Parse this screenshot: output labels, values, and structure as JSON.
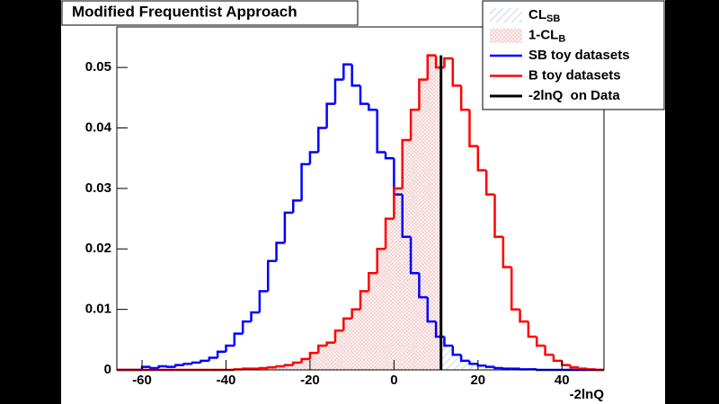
{
  "chart_data": {
    "type": "histogram",
    "title": "Modified Frequentist Approach",
    "xlabel": "-2lnQ",
    "xlim": [
      -66,
      50
    ],
    "ylim": [
      0,
      0.0567
    ],
    "xticks": [
      -60,
      -40,
      -20,
      0,
      20,
      40
    ],
    "yticks": [
      0,
      0.01,
      0.02,
      0.03,
      0.04,
      0.05
    ],
    "bins": [
      -66,
      -64,
      -62,
      -60,
      -58,
      -56,
      -54,
      -52,
      -50,
      -48,
      -46,
      -44,
      -42,
      -40,
      -38,
      -36,
      -34,
      -32,
      -30,
      -28,
      -26,
      -24,
      -22,
      -20,
      -18,
      -16,
      -14,
      -12,
      -10,
      -8,
      -6,
      -4,
      -2,
      0,
      2,
      4,
      6,
      8,
      10,
      12,
      14,
      16,
      18,
      20,
      22,
      24,
      26,
      28,
      30,
      32,
      34,
      36,
      38,
      40,
      42,
      44,
      46,
      48,
      50
    ],
    "series": [
      {
        "name": "SB toy datasets",
        "color": "#0000ff",
        "fill": "hatch",
        "fill_name": "CL",
        "fill_sub": "SB",
        "fill_side": "right",
        "values": [
          0,
          0,
          0,
          0.0005,
          0.0003,
          0.0006,
          0.0005,
          0.0008,
          0.001,
          0.0012,
          0.0015,
          0.002,
          0.003,
          0.004,
          0.006,
          0.008,
          0.0095,
          0.013,
          0.018,
          0.021,
          0.026,
          0.028,
          0.034,
          0.036,
          0.04,
          0.044,
          0.048,
          0.0505,
          0.047,
          0.044,
          0.043,
          0.036,
          0.035,
          0.029,
          0.022,
          0.016,
          0.012,
          0.008,
          0.0055,
          0.004,
          0.0025,
          0.0015,
          0.001,
          0.0007,
          0.0005,
          0.0003,
          0.0002,
          0.0002,
          0.0001,
          0.0001,
          0,
          0,
          0,
          0,
          0,
          0,
          0,
          0
        ]
      },
      {
        "name": "B toy datasets",
        "color": "#ff0000",
        "fill": "dots",
        "fill_name": "1-CL",
        "fill_sub": "B",
        "fill_side": "left",
        "values": [
          0,
          0,
          0,
          0,
          0,
          0,
          0,
          0,
          0,
          0,
          0,
          0,
          0,
          0,
          0.0001,
          0.0002,
          0.0002,
          0.0003,
          0.0004,
          0.0006,
          0.0008,
          0.0012,
          0.0018,
          0.0028,
          0.004,
          0.0045,
          0.0065,
          0.0085,
          0.01,
          0.013,
          0.016,
          0.02,
          0.025,
          0.03,
          0.038,
          0.043,
          0.048,
          0.052,
          0.05,
          0.0515,
          0.047,
          0.043,
          0.037,
          0.033,
          0.029,
          0.022,
          0.017,
          0.01,
          0.008,
          0.0055,
          0.004,
          0.0025,
          0.0015,
          0.0008,
          0.0004,
          0.0002,
          0.0001,
          0
        ]
      }
    ],
    "observed": {
      "name": "-2lnQ  on Data",
      "value": 11.2,
      "color": "#000000"
    }
  }
}
